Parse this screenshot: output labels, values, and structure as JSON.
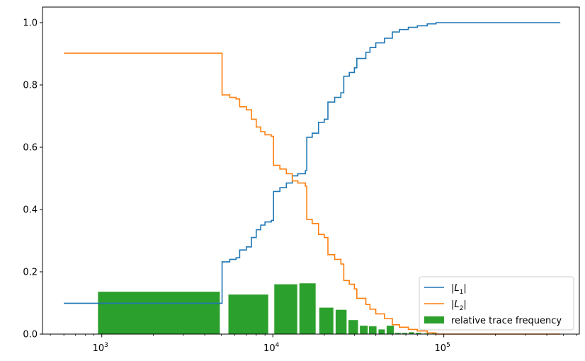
{
  "chart_data": {
    "type": "line",
    "xscale": "log",
    "xlim": [
      450,
      620000
    ],
    "ylim": [
      0,
      1.05
    ],
    "x_major_ticks": [
      1000,
      10000,
      100000
    ],
    "x_tick_labels": [
      {
        "base": "10",
        "exp": "3"
      },
      {
        "base": "10",
        "exp": "4"
      },
      {
        "base": "10",
        "exp": "5"
      }
    ],
    "y_ticks": [
      0.0,
      0.2,
      0.4,
      0.6,
      0.8,
      1.0
    ],
    "y_tick_labels": [
      "0.0",
      "0.2",
      "0.4",
      "0.6",
      "0.8",
      "1.0"
    ],
    "grid": false,
    "legend_position": "bottom-right",
    "series": [
      {
        "name": "|L1|",
        "legend": {
          "text": "|L",
          "sub": "1",
          "tail": "|"
        },
        "color": "#1f77b4",
        "points": [
          [
            600,
            0.099
          ],
          [
            5000,
            0.099
          ],
          [
            5050,
            0.232
          ],
          [
            5600,
            0.24
          ],
          [
            6100,
            0.245
          ],
          [
            6400,
            0.27
          ],
          [
            7000,
            0.28
          ],
          [
            7500,
            0.31
          ],
          [
            8000,
            0.335
          ],
          [
            8500,
            0.35
          ],
          [
            9000,
            0.36
          ],
          [
            9800,
            0.365
          ],
          [
            10100,
            0.458
          ],
          [
            11000,
            0.47
          ],
          [
            12000,
            0.485
          ],
          [
            13000,
            0.508
          ],
          [
            14000,
            0.515
          ],
          [
            15500,
            0.525
          ],
          [
            15800,
            0.632
          ],
          [
            17000,
            0.645
          ],
          [
            18500,
            0.68
          ],
          [
            20000,
            0.69
          ],
          [
            21000,
            0.745
          ],
          [
            23000,
            0.76
          ],
          [
            25000,
            0.775
          ],
          [
            26000,
            0.828
          ],
          [
            28000,
            0.84
          ],
          [
            30000,
            0.855
          ],
          [
            31000,
            0.885
          ],
          [
            35000,
            0.905
          ],
          [
            37000,
            0.92
          ],
          [
            40000,
            0.935
          ],
          [
            45000,
            0.95
          ],
          [
            50000,
            0.97
          ],
          [
            55000,
            0.978
          ],
          [
            62000,
            0.985
          ],
          [
            70000,
            0.99
          ],
          [
            80000,
            0.996
          ],
          [
            90000,
            1.0
          ],
          [
            480000,
            1.0
          ]
        ]
      },
      {
        "name": "|L2|",
        "legend": {
          "text": "|L",
          "sub": "2",
          "tail": "|"
        },
        "color": "#ff7f0e",
        "points": [
          [
            600,
            0.902
          ],
          [
            5000,
            0.902
          ],
          [
            5050,
            0.768
          ],
          [
            5600,
            0.76
          ],
          [
            6100,
            0.755
          ],
          [
            6400,
            0.73
          ],
          [
            7000,
            0.72
          ],
          [
            7500,
            0.69
          ],
          [
            8000,
            0.665
          ],
          [
            8500,
            0.65
          ],
          [
            9000,
            0.64
          ],
          [
            9800,
            0.635
          ],
          [
            10100,
            0.542
          ],
          [
            11000,
            0.53
          ],
          [
            12000,
            0.515
          ],
          [
            13000,
            0.492
          ],
          [
            14000,
            0.485
          ],
          [
            15500,
            0.475
          ],
          [
            15800,
            0.368
          ],
          [
            17000,
            0.355
          ],
          [
            18500,
            0.32
          ],
          [
            20000,
            0.31
          ],
          [
            21000,
            0.255
          ],
          [
            23000,
            0.24
          ],
          [
            25000,
            0.225
          ],
          [
            26000,
            0.172
          ],
          [
            28000,
            0.16
          ],
          [
            30000,
            0.145
          ],
          [
            31000,
            0.115
          ],
          [
            35000,
            0.095
          ],
          [
            37000,
            0.08
          ],
          [
            40000,
            0.065
          ],
          [
            45000,
            0.05
          ],
          [
            50000,
            0.03
          ],
          [
            55000,
            0.022
          ],
          [
            62000,
            0.015
          ],
          [
            70000,
            0.01
          ],
          [
            80000,
            0.004
          ],
          [
            90000,
            0.0
          ],
          [
            480000,
            0.0
          ]
        ]
      }
    ],
    "bars": {
      "name": "relative trace frequency",
      "color": "#2ca02c",
      "items": [
        {
          "x0": 950,
          "x1": 4900,
          "value": 0.136
        },
        {
          "x0": 5500,
          "x1": 9400,
          "value": 0.127
        },
        {
          "x0": 10200,
          "x1": 13900,
          "value": 0.16
        },
        {
          "x0": 14300,
          "x1": 17800,
          "value": 0.163
        },
        {
          "x0": 18700,
          "x1": 22600,
          "value": 0.085
        },
        {
          "x0": 23300,
          "x1": 27000,
          "value": 0.078
        },
        {
          "x0": 27700,
          "x1": 31500,
          "value": 0.045
        },
        {
          "x0": 32300,
          "x1": 35900,
          "value": 0.027
        },
        {
          "x0": 36500,
          "x1": 40400,
          "value": 0.025
        },
        {
          "x0": 41500,
          "x1": 45200,
          "value": 0.015
        },
        {
          "x0": 46300,
          "x1": 51000,
          "value": 0.027
        },
        {
          "x0": 52000,
          "x1": 56000,
          "value": 0.004
        },
        {
          "x0": 57000,
          "x1": 61000,
          "value": 0.004
        },
        {
          "x0": 62500,
          "x1": 67000,
          "value": 0.006
        },
        {
          "x0": 68500,
          "x1": 74000,
          "value": 0.004
        },
        {
          "x0": 76000,
          "x1": 82000,
          "value": 0.002
        },
        {
          "x0": 85000,
          "x1": 92000,
          "value": 0.002
        }
      ]
    }
  }
}
